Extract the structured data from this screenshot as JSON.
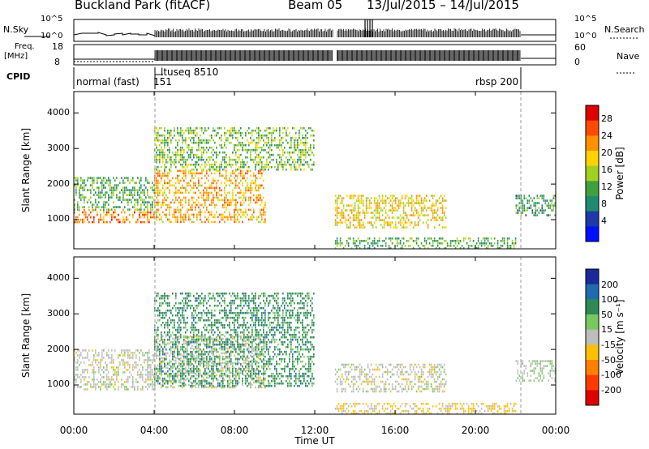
{
  "header": {
    "site": "Buckland Park (fitACF)",
    "beam": "Beam 05",
    "date_range": "13/Jul/2015 – 14/Jul/2015"
  },
  "top_panels": {
    "nsky_label": "N.Sky",
    "nsky_ticks": [
      "10^5",
      "10^0"
    ],
    "nsearch_label": "N.Search",
    "nsearch_ticks": [
      "10^5",
      "10^0"
    ],
    "freq_label_1": "Freq.",
    "freq_label_2": "[MHz]",
    "freq_ticks": [
      "18",
      "8"
    ],
    "nave_label": "Nave",
    "nave_ticks": [
      "60",
      "0"
    ],
    "cpid_label": "CPID",
    "cpid_segments": [
      "normal (fast)",
      "151",
      "ltuseq 8510",
      "rbsp 200"
    ]
  },
  "power_scale": {
    "label": "Power [dB]",
    "ticks": [
      "28",
      "24",
      "20",
      "16",
      "12",
      "8",
      "4"
    ],
    "colors": [
      "#e00000",
      "#ff4a00",
      "#ff9000",
      "#ffd200",
      "#a0d020",
      "#40a040",
      "#208a70",
      "#1e3aa8",
      "#0010ff"
    ]
  },
  "velocity_scale": {
    "label": "Velocity [m s⁻¹]",
    "ticks": [
      "200",
      "100",
      "50",
      "15",
      "-15",
      "-50",
      "-100",
      "-200"
    ],
    "colors": [
      "#1a2a9a",
      "#1f6bb0",
      "#2e8a55",
      "#78c860",
      "#bdbdbd",
      "#ffc000",
      "#ff8000",
      "#ff3a00",
      "#e00000"
    ]
  },
  "axes": {
    "ylabel": "Slant Range [km]",
    "xlabel": "Time UT",
    "yticks": [
      "1000",
      "2000",
      "3000",
      "4000"
    ],
    "xticks": [
      "00:00",
      "04:00",
      "08:00",
      "12:00",
      "16:00",
      "20:00",
      "00:00"
    ]
  },
  "chart_data": [
    {
      "type": "heatmap",
      "title": "",
      "quantity": "Power [dB]",
      "xlabel": "",
      "ylabel": "Slant Range [km]",
      "xlim": [
        0,
        24
      ],
      "ylim": [
        180,
        4600
      ],
      "x_tick_values": [
        0,
        4,
        8,
        12,
        16,
        20,
        24
      ],
      "y_tick_values": [
        1000,
        2000,
        3000,
        4000
      ],
      "colorbar_range": [
        0,
        32
      ],
      "echo_regions": [
        {
          "t_start": 0.0,
          "t_end": 4.0,
          "range_min": 900,
          "range_max": 1300,
          "value": 26
        },
        {
          "t_start": 0.0,
          "t_end": 4.0,
          "range_min": 1300,
          "range_max": 2200,
          "value": 12
        },
        {
          "t_start": 4.0,
          "t_end": 9.5,
          "range_min": 900,
          "range_max": 2400,
          "value": 22
        },
        {
          "t_start": 4.0,
          "t_end": 12.0,
          "range_min": 2400,
          "range_max": 3600,
          "value": 14
        },
        {
          "t_start": 13.0,
          "t_end": 18.5,
          "range_min": 800,
          "range_max": 1700,
          "value": 20
        },
        {
          "t_start": 13.0,
          "t_end": 22.0,
          "range_min": 180,
          "range_max": 500,
          "value": 12
        },
        {
          "t_start": 22.0,
          "t_end": 24.0,
          "range_min": 1100,
          "range_max": 1700,
          "value": 10
        }
      ]
    },
    {
      "type": "heatmap",
      "title": "",
      "quantity": "Velocity [m s⁻¹]",
      "xlabel": "Time UT",
      "ylabel": "Slant Range [km]",
      "xlim": [
        0,
        24
      ],
      "ylim": [
        180,
        4600
      ],
      "x_tick_values": [
        0,
        4,
        8,
        12,
        16,
        20,
        24
      ],
      "y_tick_values": [
        1000,
        2000,
        3000,
        4000
      ],
      "colorbar_range": [
        -250,
        250
      ],
      "echo_regions": [
        {
          "t_start": 0.0,
          "t_end": 4.0,
          "range_min": 900,
          "range_max": 2000,
          "value": 0
        },
        {
          "t_start": 4.0,
          "t_end": 9.5,
          "range_min": 900,
          "range_max": 2400,
          "value": 0
        },
        {
          "t_start": 4.0,
          "t_end": 12.0,
          "range_min": 1000,
          "range_max": 3600,
          "value": 120
        },
        {
          "t_start": 13.0,
          "t_end": 18.5,
          "range_min": 800,
          "range_max": 1600,
          "value": 0
        },
        {
          "t_start": 13.0,
          "t_end": 22.0,
          "range_min": 180,
          "range_max": 500,
          "value": -40
        },
        {
          "t_start": 22.0,
          "t_end": 24.0,
          "range_min": 1100,
          "range_max": 1700,
          "value": 20
        }
      ]
    }
  ]
}
